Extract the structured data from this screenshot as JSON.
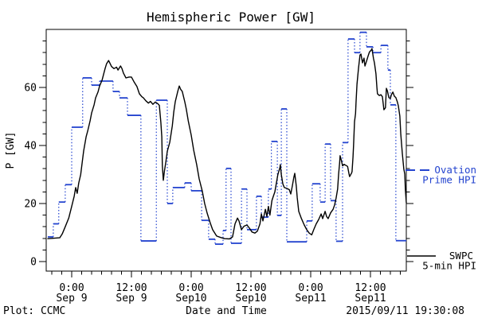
{
  "title": "Hemispheric Power [GW]",
  "axes": {
    "y_label": "P [GW]",
    "x_label": "Date and Time",
    "y_ticks": [
      {
        "value": 0,
        "label": "0"
      },
      {
        "value": 20,
        "label": "20"
      },
      {
        "value": 40,
        "label": "40"
      },
      {
        "value": 60,
        "label": "60"
      }
    ],
    "x_ticks": [
      {
        "t": 4.8,
        "time": "0:00",
        "date": "Sep 9"
      },
      {
        "t": 16.8,
        "time": "12:00",
        "date": "Sep 9"
      },
      {
        "t": 28.8,
        "time": "0:00",
        "date": "Sep10"
      },
      {
        "t": 40.8,
        "time": "12:00",
        "date": "Sep10"
      },
      {
        "t": 52.8,
        "time": "0:00",
        "date": "Sep11"
      },
      {
        "t": 64.8,
        "time": "12:00",
        "date": "Sep11"
      }
    ]
  },
  "footer": {
    "left": "Plot: CCMC",
    "right": "2015/09/11 19:30:08"
  },
  "legend": {
    "series": [
      {
        "line1": "Ovation",
        "line2": "Prime HPI",
        "color": "#2444cf"
      },
      {
        "line1": "SWPC",
        "line2": "5-min HPI",
        "color": "#000000"
      }
    ]
  },
  "chart_data": {
    "type": "line",
    "title": "Hemispheric Power [GW]",
    "xlabel": "Date and Time",
    "ylabel": "P [GW]",
    "ylim": [
      0,
      80
    ],
    "y_major_step": 20,
    "y_minor_step": 4,
    "x_unit": "hours since 2015-09-08 19:12 UT",
    "xlim": [
      0,
      72
    ],
    "grid": false,
    "legend_position": "right-outside",
    "series": [
      {
        "name": "Ovation Prime HPI",
        "color": "#2444cf",
        "style": "steps-with-dotted-risers",
        "steps": [
          [
            0,
            8.5
          ],
          [
            1.1,
            13
          ],
          [
            2.2,
            20.5
          ],
          [
            3.5,
            26.5
          ],
          [
            4.8,
            46.3
          ],
          [
            7,
            63.3
          ],
          [
            8.8,
            60.8
          ],
          [
            10.4,
            62.2
          ],
          [
            13.1,
            58.6
          ],
          [
            14.4,
            56.4
          ],
          [
            16,
            50.4
          ],
          [
            18.7,
            7.1
          ],
          [
            21.8,
            55.6
          ],
          [
            24,
            20
          ],
          [
            25.1,
            25.5
          ],
          [
            27.5,
            27.1
          ],
          [
            28.8,
            24.4
          ],
          [
            30.9,
            14.2
          ],
          [
            32.3,
            7.7
          ],
          [
            33.6,
            6
          ],
          [
            35.2,
            10.7
          ],
          [
            35.8,
            32.1
          ],
          [
            36.8,
            6.3
          ],
          [
            38.9,
            25
          ],
          [
            40,
            11
          ],
          [
            41.9,
            22.5
          ],
          [
            42.9,
            15.3
          ],
          [
            44.3,
            25
          ],
          [
            44.9,
            41.4
          ],
          [
            46.1,
            15.9
          ],
          [
            46.9,
            52.6
          ],
          [
            48,
            6.8
          ],
          [
            52,
            14
          ],
          [
            53.1,
            26.8
          ],
          [
            54.7,
            20.5
          ],
          [
            55.7,
            40.5
          ],
          [
            56.8,
            21
          ],
          [
            57.9,
            7
          ],
          [
            59.2,
            41
          ],
          [
            60.3,
            76.7
          ],
          [
            61.6,
            72
          ],
          [
            62.7,
            79
          ],
          [
            64,
            74
          ],
          [
            65.3,
            72
          ],
          [
            66.9,
            74.5
          ],
          [
            68.3,
            66
          ],
          [
            68.8,
            54
          ],
          [
            69.9,
            7.2
          ]
        ]
      },
      {
        "name": "SWPC 5-min HPI",
        "color": "#000000",
        "style": "solid",
        "points": [
          [
            0,
            7.9
          ],
          [
            2.4,
            8.2
          ],
          [
            2.9,
            9.5
          ],
          [
            3.5,
            12
          ],
          [
            4.2,
            15
          ],
          [
            4.8,
            19
          ],
          [
            5.3,
            22.5
          ],
          [
            5.6,
            25.5
          ],
          [
            5.9,
            23.5
          ],
          [
            6.2,
            27
          ],
          [
            6.6,
            30
          ],
          [
            6.9,
            34
          ],
          [
            7.2,
            38.1
          ],
          [
            7.7,
            43
          ],
          [
            8,
            44.9
          ],
          [
            8.5,
            48.5
          ],
          [
            8.8,
            51.2
          ],
          [
            9.3,
            54
          ],
          [
            9.6,
            56.4
          ],
          [
            10.1,
            58.5
          ],
          [
            10.4,
            60.5
          ],
          [
            10.9,
            62.5
          ],
          [
            11.2,
            64.5
          ],
          [
            11.5,
            66.5
          ],
          [
            11.8,
            68.2
          ],
          [
            12.2,
            69.3
          ],
          [
            12.5,
            68.3
          ],
          [
            12.8,
            67.2
          ],
          [
            13.3,
            66.5
          ],
          [
            13.8,
            67
          ],
          [
            14.1,
            66
          ],
          [
            14.6,
            67.4
          ],
          [
            14.9,
            66.5
          ],
          [
            15.2,
            64.9
          ],
          [
            15.7,
            63.3
          ],
          [
            16.3,
            63.6
          ],
          [
            16.8,
            63.6
          ],
          [
            17.3,
            62
          ],
          [
            17.9,
            60.3
          ],
          [
            18.4,
            57.8
          ],
          [
            18.9,
            56.8
          ],
          [
            19.2,
            56.4
          ],
          [
            19.7,
            55.4
          ],
          [
            20.2,
            54.6
          ],
          [
            20.6,
            55.2
          ],
          [
            21.1,
            54.2
          ],
          [
            21.6,
            55
          ],
          [
            22.1,
            54.4
          ],
          [
            22.4,
            53.8
          ],
          [
            22.7,
            48
          ],
          [
            22.9,
            43
          ],
          [
            23,
            33
          ],
          [
            23.2,
            28
          ],
          [
            23.4,
            31
          ],
          [
            23.7,
            34.2
          ],
          [
            24,
            38
          ],
          [
            24.5,
            41.1
          ],
          [
            25,
            46.8
          ],
          [
            25.3,
            51.5
          ],
          [
            25.6,
            55.1
          ],
          [
            26.1,
            58.6
          ],
          [
            26.4,
            60.5
          ],
          [
            26.7,
            59.3
          ],
          [
            27,
            58.6
          ],
          [
            27.5,
            55.1
          ],
          [
            27.8,
            52.6
          ],
          [
            28.2,
            48.5
          ],
          [
            28.8,
            43.6
          ],
          [
            29.3,
            38.4
          ],
          [
            29.9,
            33.4
          ],
          [
            30.4,
            28.5
          ],
          [
            31,
            24.4
          ],
          [
            31.5,
            20
          ],
          [
            32,
            16.7
          ],
          [
            32.6,
            13.4
          ],
          [
            33.1,
            11
          ],
          [
            33.9,
            8.8
          ],
          [
            34.7,
            8.3
          ],
          [
            35.5,
            7.9
          ],
          [
            36.5,
            7.8
          ],
          [
            37.1,
            8.5
          ],
          [
            37.6,
            13
          ],
          [
            38.1,
            15
          ],
          [
            38.4,
            14
          ],
          [
            38.9,
            11
          ],
          [
            39.4,
            12.2
          ],
          [
            40,
            12.6
          ],
          [
            40.5,
            11.5
          ],
          [
            41,
            10.2
          ],
          [
            41.6,
            9.8
          ],
          [
            42.1,
            10.5
          ],
          [
            42.6,
            13
          ],
          [
            42.9,
            16.4
          ],
          [
            43.2,
            14
          ],
          [
            43.7,
            18
          ],
          [
            44,
            15.5
          ],
          [
            44.3,
            19
          ],
          [
            44.6,
            16
          ],
          [
            45,
            21
          ],
          [
            45.3,
            22.5
          ],
          [
            45.6,
            24
          ],
          [
            45.9,
            27
          ],
          [
            46.2,
            30
          ],
          [
            46.6,
            32.3
          ],
          [
            46.7,
            33.4
          ],
          [
            46.9,
            30
          ],
          [
            47.2,
            26.8
          ],
          [
            47.5,
            25.5
          ],
          [
            48,
            25.2
          ],
          [
            48.5,
            24.8
          ],
          [
            48.8,
            23.3
          ],
          [
            49.1,
            26
          ],
          [
            49.4,
            29
          ],
          [
            49.6,
            30.4
          ],
          [
            49.9,
            26
          ],
          [
            50.1,
            22
          ],
          [
            50.4,
            17.3
          ],
          [
            50.9,
            15
          ],
          [
            51.5,
            12.6
          ],
          [
            52,
            11
          ],
          [
            52.5,
            9.8
          ],
          [
            53,
            9.2
          ],
          [
            53.4,
            11
          ],
          [
            53.9,
            13
          ],
          [
            54.4,
            14.5
          ],
          [
            54.9,
            16.4
          ],
          [
            55.2,
            14.8
          ],
          [
            55.7,
            17.3
          ],
          [
            56,
            15.5
          ],
          [
            56.3,
            14.8
          ],
          [
            56.8,
            16.8
          ],
          [
            57.3,
            18
          ],
          [
            57.6,
            19.5
          ],
          [
            57.9,
            21.9
          ],
          [
            58.2,
            25
          ],
          [
            58.4,
            30
          ],
          [
            58.6,
            34
          ],
          [
            58.7,
            36.5
          ],
          [
            59,
            34.5
          ],
          [
            59.2,
            33
          ],
          [
            59.5,
            33.5
          ],
          [
            59.8,
            33.2
          ],
          [
            60.2,
            32.8
          ],
          [
            60.5,
            30.2
          ],
          [
            60.6,
            29.3
          ],
          [
            61,
            30.5
          ],
          [
            61.1,
            31
          ],
          [
            61.3,
            36
          ],
          [
            61.4,
            40
          ],
          [
            61.6,
            48.2
          ],
          [
            61.8,
            51
          ],
          [
            61.9,
            54.8
          ],
          [
            62.1,
            61.1
          ],
          [
            62.4,
            66.6
          ],
          [
            62.7,
            71.2
          ],
          [
            62.9,
            71.5
          ],
          [
            63.2,
            68.5
          ],
          [
            63.5,
            70.1
          ],
          [
            63.7,
            67.4
          ],
          [
            64,
            69
          ],
          [
            64.3,
            70.7
          ],
          [
            64.6,
            72.2
          ],
          [
            65,
            73
          ],
          [
            65.1,
            73.4
          ],
          [
            65.4,
            70
          ],
          [
            65.6,
            68.5
          ],
          [
            65.9,
            64.7
          ],
          [
            66.1,
            60
          ],
          [
            66.2,
            57.8
          ],
          [
            66.6,
            57.2
          ],
          [
            66.9,
            57.5
          ],
          [
            67.2,
            56.8
          ],
          [
            67.5,
            52.3
          ],
          [
            67.8,
            53
          ],
          [
            68,
            59.7
          ],
          [
            68.2,
            58.8
          ],
          [
            68.5,
            56.5
          ],
          [
            68.8,
            56.2
          ],
          [
            69,
            57.5
          ],
          [
            69.3,
            58.4
          ],
          [
            69.6,
            57
          ],
          [
            69.9,
            56.5
          ],
          [
            70.2,
            55
          ],
          [
            70.4,
            53.7
          ],
          [
            70.7,
            50.1
          ],
          [
            70.9,
            43.8
          ],
          [
            71.2,
            37.3
          ],
          [
            71.5,
            31.8
          ],
          [
            71.7,
            30.2
          ],
          [
            71.8,
            25
          ],
          [
            72,
            20.3
          ]
        ]
      }
    ]
  }
}
